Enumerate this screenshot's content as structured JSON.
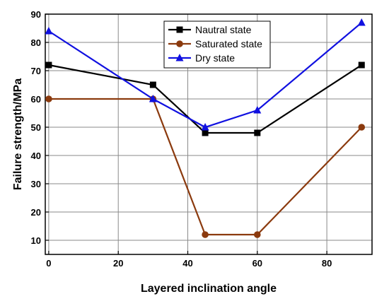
{
  "chart_data": {
    "type": "line",
    "title": "",
    "xlabel": "Layered inclination angle",
    "ylabel": "Failure strength/MPa",
    "xlim": [
      -1,
      93
    ],
    "ylim": [
      5,
      90
    ],
    "xticks": [
      0,
      20,
      40,
      60,
      80
    ],
    "yticks": [
      10,
      20,
      30,
      40,
      50,
      60,
      70,
      80,
      90
    ],
    "grid": true,
    "legend_position": "top-center",
    "series": [
      {
        "name": "Nautral state",
        "color": "#000000",
        "marker": "square",
        "x": [
          0,
          30,
          45,
          60,
          90
        ],
        "y": [
          72,
          65,
          48,
          48,
          72
        ]
      },
      {
        "name": "Saturated state",
        "color": "#8B3A0E",
        "marker": "circle",
        "x": [
          0,
          30,
          45,
          60,
          90
        ],
        "y": [
          60,
          60,
          12,
          12,
          50
        ]
      },
      {
        "name": "Dry state",
        "color": "#1010E0",
        "marker": "triangle",
        "x": [
          0,
          30,
          45,
          60,
          90
        ],
        "y": [
          84,
          60,
          50,
          56,
          87
        ]
      }
    ]
  }
}
